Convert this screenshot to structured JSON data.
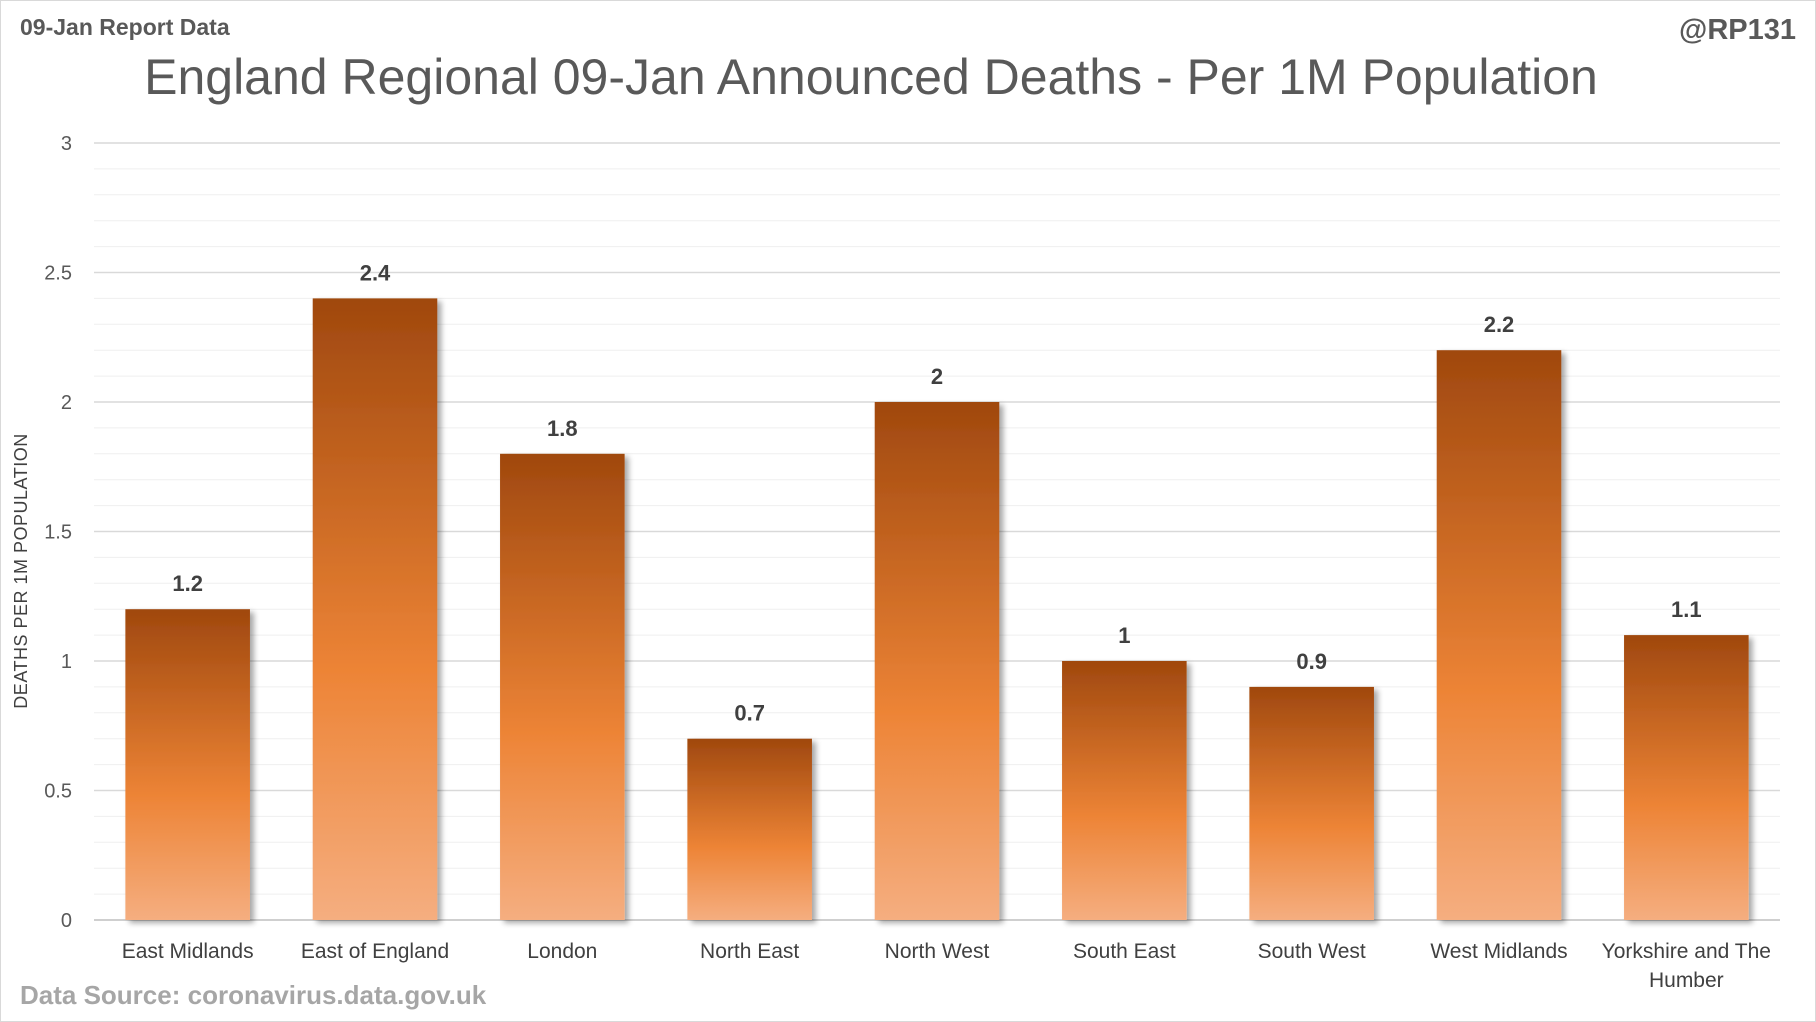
{
  "header": {
    "report_label": "09-Jan Report Data",
    "handle": "@RP131"
  },
  "footer": {
    "source": "Data Source: coronavirus.data.gov.uk"
  },
  "colors": {
    "bar_dark": "#a0480e",
    "bar_mid": "#ed8436",
    "bar_light": "#f5ae80",
    "gridline": "#d9d9d9",
    "minor_gridline": "#efefef"
  },
  "chart_data": {
    "type": "bar",
    "title": "England Regional 09-Jan Announced Deaths - Per 1M Population",
    "xlabel": "",
    "ylabel": "DEATHS PER 1M POPULATION",
    "ylim": [
      0,
      3
    ],
    "yticks": [
      "0",
      "0.5",
      "1",
      "1.5",
      "2",
      "2.5",
      "3"
    ],
    "ytick_values": [
      0,
      0.5,
      1,
      1.5,
      2,
      2.5,
      3
    ],
    "grid": true,
    "categories": [
      [
        "East Midlands"
      ],
      [
        "East of England"
      ],
      [
        "London"
      ],
      [
        "North East"
      ],
      [
        "North West"
      ],
      [
        "South East"
      ],
      [
        "South West"
      ],
      [
        "West Midlands"
      ],
      [
        "Yorkshire and The",
        "Humber"
      ]
    ],
    "values": [
      1.2,
      2.4,
      1.8,
      0.7,
      2,
      1,
      0.9,
      2.2,
      1.1
    ],
    "data_labels": [
      "1.2",
      "2.4",
      "1.8",
      "0.7",
      "2",
      "1",
      "0.9",
      "2.2",
      "1.1"
    ]
  }
}
